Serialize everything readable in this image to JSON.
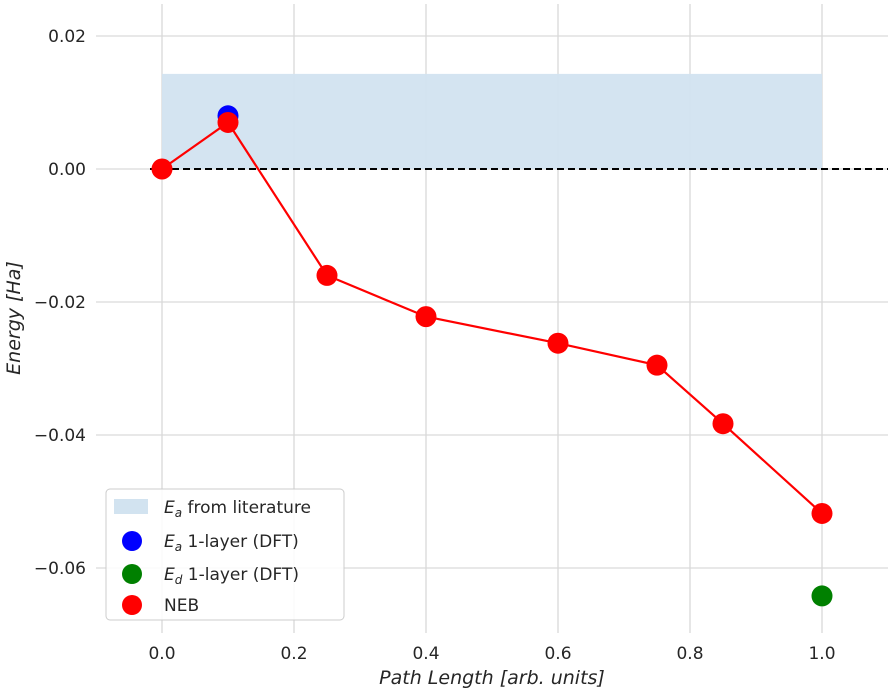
{
  "chart_data": {
    "type": "line",
    "xlabel": {
      "prefix": "Path Length [",
      "unit": "arb. units",
      "suffix": "]"
    },
    "ylabel": {
      "prefix": "Energy [",
      "unit": "Ha",
      "suffix": "]"
    },
    "xlim": [
      -0.1,
      1.1
    ],
    "ylim": [
      -0.07,
      0.025
    ],
    "x_ticks": [
      0.0,
      0.2,
      0.4,
      0.6,
      0.8,
      1.0
    ],
    "x_tick_labels": [
      "0.0",
      "0.2",
      "0.4",
      "0.6",
      "0.8",
      "1.0"
    ],
    "y_ticks": [
      0.02,
      0.0,
      -0.02,
      -0.04,
      -0.06
    ],
    "y_tick_labels": [
      "0.02",
      "0.00",
      "−0.02",
      "−0.04",
      "−0.06"
    ],
    "grid": true,
    "legend_position": "bottom-left",
    "band": {
      "x": [
        0.0,
        1.0
      ],
      "y": [
        0.0,
        0.0143
      ],
      "color": "#d2e3f0"
    },
    "reference_line": {
      "y": 0.0,
      "style": "dashed",
      "color": "#000000"
    },
    "series": [
      {
        "name": "NEB",
        "color": "#ff0000",
        "x": [
          0.0,
          0.1,
          0.25,
          0.4,
          0.6,
          0.75,
          0.85,
          1.0
        ],
        "y": [
          0.0,
          0.007,
          -0.016,
          -0.0222,
          -0.0262,
          -0.0295,
          -0.0383,
          -0.0518
        ]
      },
      {
        "name": "E_a 1-layer (DFT)",
        "color": "#0000ff",
        "x": [
          0.1
        ],
        "y": [
          0.008
        ]
      },
      {
        "name": "E_d 1-layer (DFT)",
        "color": "#008000",
        "x": [
          1.0
        ],
        "y": [
          -0.0642
        ]
      }
    ],
    "legend": [
      {
        "kind": "band",
        "symbol": "E",
        "sub": "a",
        "text": " from literature",
        "color": "#d2e3f0"
      },
      {
        "kind": "marker",
        "symbol": "E",
        "sub": "a",
        "text": " 1-layer (DFT)",
        "color": "#0000ff"
      },
      {
        "kind": "marker",
        "symbol": "E",
        "sub": "d",
        "text": " 1-layer (DFT)",
        "color": "#008000"
      },
      {
        "kind": "marker",
        "symbol": "",
        "sub": "",
        "text": "NEB",
        "color": "#ff0000"
      }
    ]
  }
}
